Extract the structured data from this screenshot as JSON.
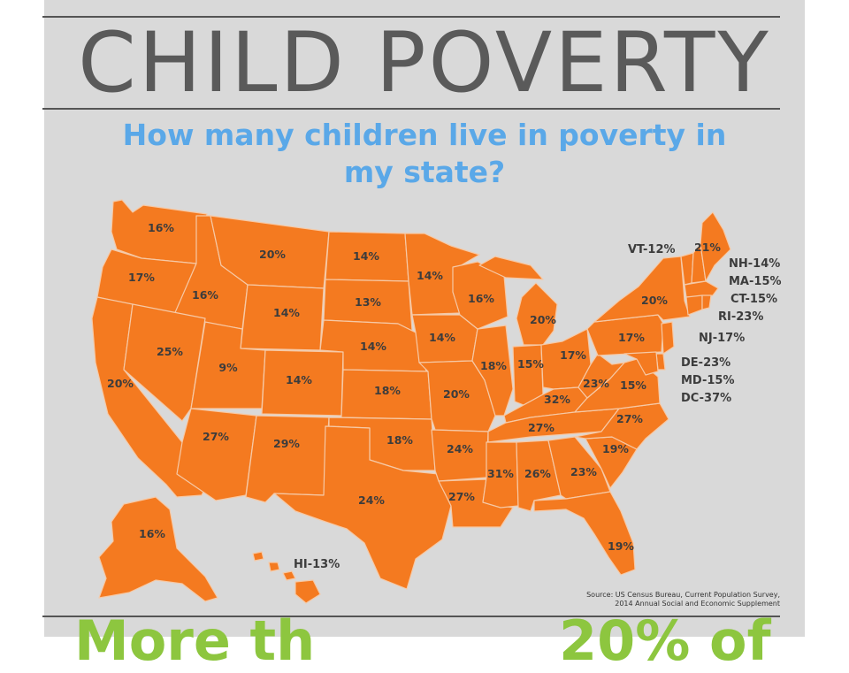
{
  "title": "CHILD POVERTY",
  "subtitle": "How many children live in poverty in my state?",
  "colors": {
    "state_fill": "#f47a20",
    "border": "#f6c9a6",
    "background": "#d9d9d9",
    "title": "#5a5a5a",
    "subtitle": "#5aa8e8",
    "teaser": "#8dc63f"
  },
  "states": {
    "WA": "16%",
    "OR": "17%",
    "CA": "20%",
    "ID": "16%",
    "NV": "25%",
    "MT": "20%",
    "WY": "14%",
    "UT": "9%",
    "CO": "14%",
    "AZ": "27%",
    "NM": "29%",
    "ND": "14%",
    "SD": "13%",
    "NE": "14%",
    "KS": "18%",
    "OK": "18%",
    "TX": "24%",
    "MN": "14%",
    "IA": "14%",
    "MO": "20%",
    "AR": "24%",
    "LA": "27%",
    "WI": "16%",
    "IL": "18%",
    "MI": "20%",
    "IN": "15%",
    "OH": "17%",
    "KY": "32%",
    "TN": "27%",
    "MS": "31%",
    "AL": "26%",
    "GA": "23%",
    "FL": "19%",
    "SC": "19%",
    "NC": "27%",
    "VA": "15%",
    "WV": "23%",
    "PA": "17%",
    "NY": "20%",
    "ME": "21%",
    "AK": "16%"
  },
  "callouts": {
    "VT": "VT-12%",
    "NH": "NH-14%",
    "MA": "MA-15%",
    "CT": "CT-15%",
    "RI": "RI-23%",
    "NJ": "NJ-17%",
    "DE": "DE-23%",
    "MD": "MD-15%",
    "DC": "DC-37%",
    "HI": "HI-13%"
  },
  "source_line1": "Source: US Census Bureau, Current Population Survey,",
  "source_line2": "2014 Annual Social and Economic Supplement",
  "teaser_left": "More th",
  "teaser_right": "20% of"
}
